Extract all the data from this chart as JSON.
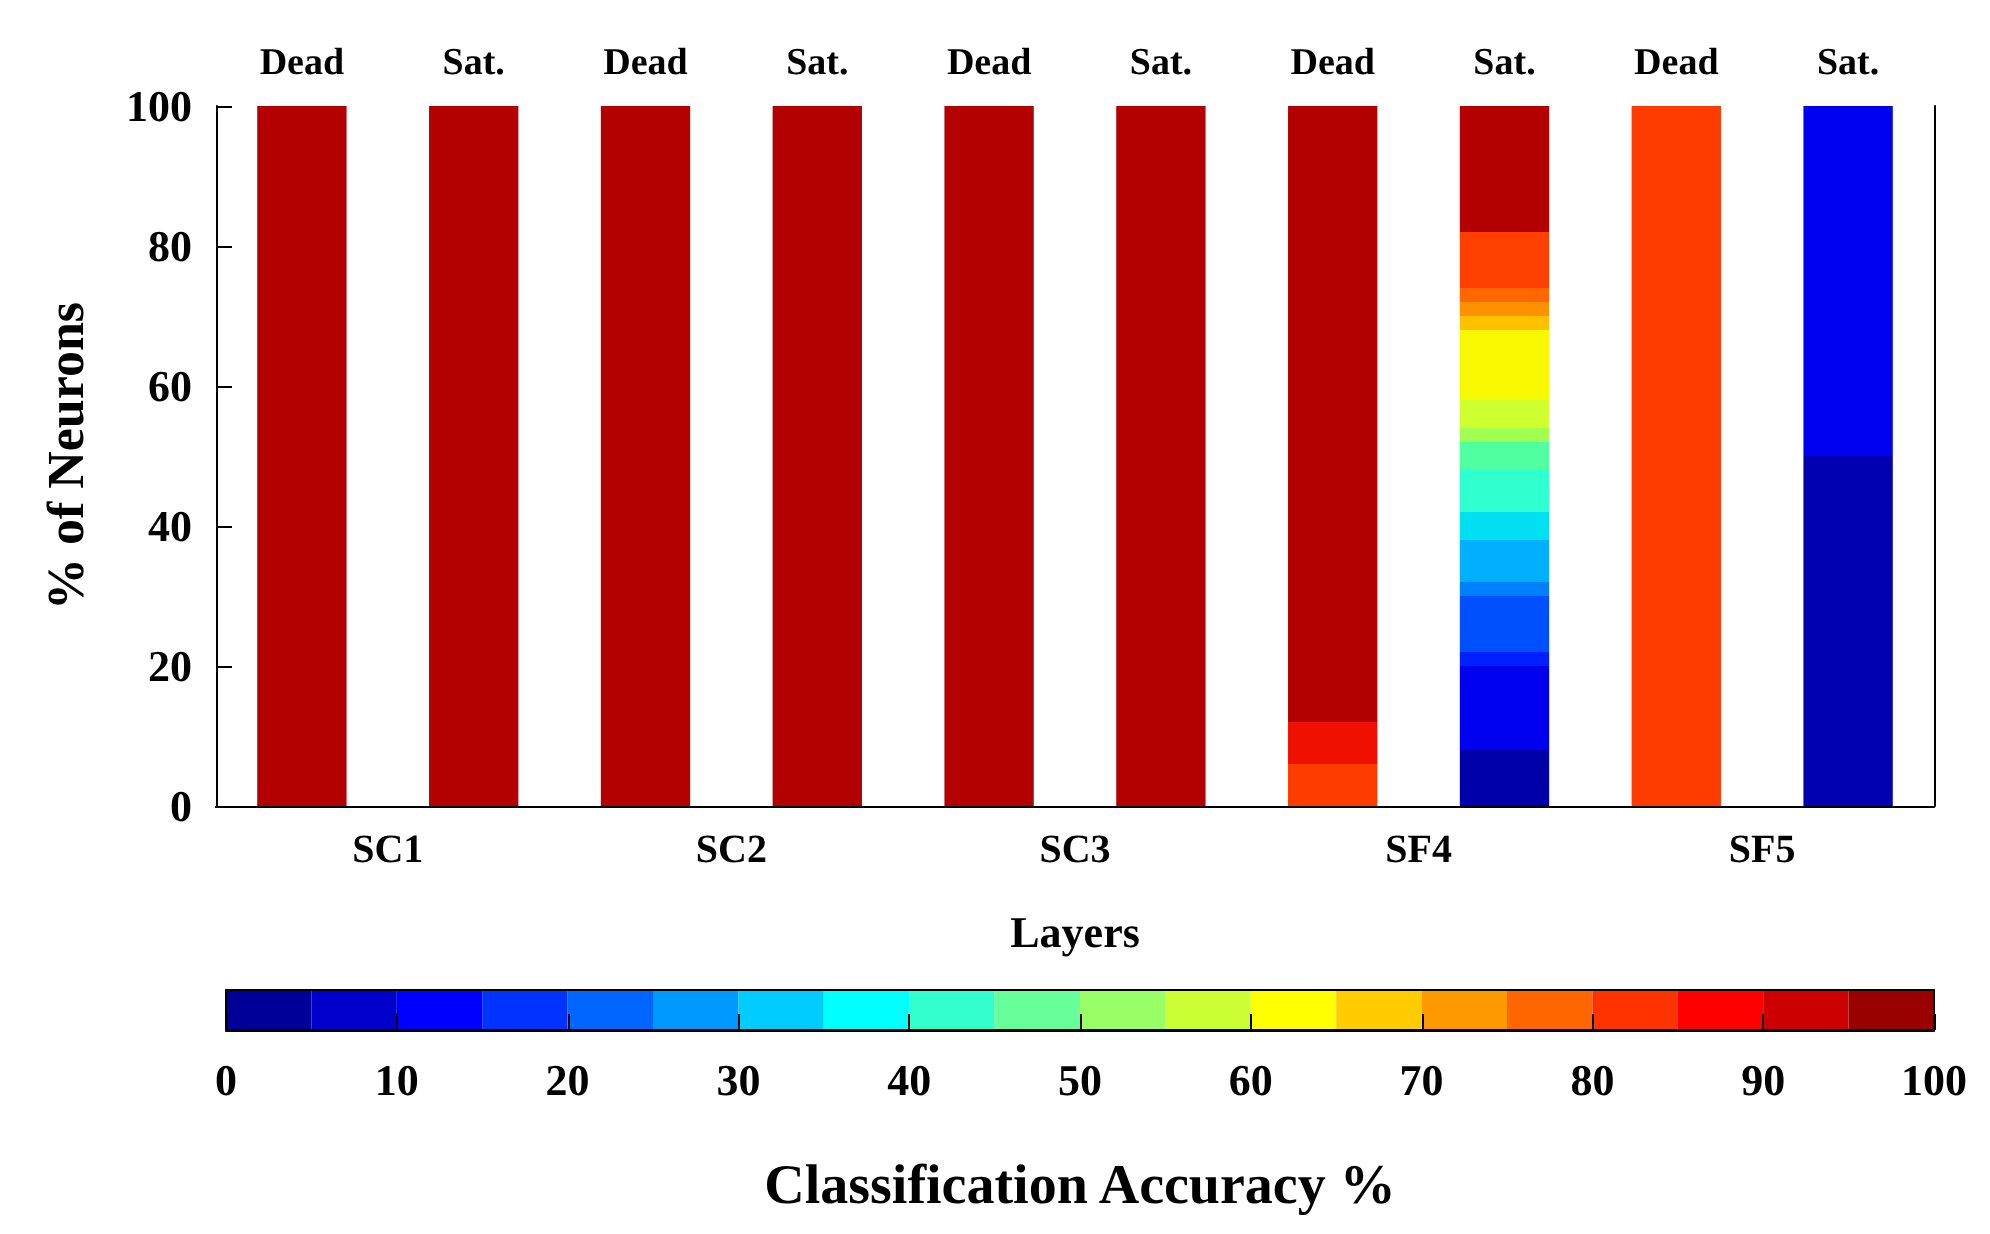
{
  "chart_data": {
    "type": "bar",
    "stacked": true,
    "xlabel": "Layers",
    "ylabel": "% of Neurons",
    "clabel": "Classification Accuracy %",
    "categories": [
      "Dead",
      "Sat.",
      "Dead",
      "Sat.",
      "Dead",
      "Sat.",
      "Dead",
      "Sat.",
      "Dead",
      "Sat."
    ],
    "annotations": [
      "SC1",
      "SC2",
      "SC3",
      "SF4",
      "SF5"
    ],
    "ylim": [
      0,
      100
    ],
    "yticks": [
      0,
      20,
      40,
      60,
      80,
      100
    ],
    "clim": [
      0,
      100
    ],
    "cticks": [
      0,
      10,
      20,
      30,
      40,
      50,
      60,
      70,
      80,
      90,
      100
    ],
    "series": [
      {
        "values": [
          100,
          100,
          100,
          100,
          100,
          100,
          6,
          8,
          100,
          50
        ],
        "colors": [
          "#b30000",
          "#b30000",
          "#b30000",
          "#b30000",
          "#b30000",
          "#b30000",
          "#ff3c00",
          "#0000aa",
          "#ff3c00",
          "#0000b0"
        ]
      },
      {
        "values": [
          null,
          null,
          null,
          null,
          null,
          null,
          6,
          12,
          null,
          50
        ],
        "colors": [
          null,
          null,
          null,
          null,
          null,
          null,
          "#f01000",
          "#0000f0",
          null,
          "#0000f0"
        ]
      },
      {
        "values": [
          null,
          null,
          null,
          null,
          null,
          null,
          88,
          2,
          null,
          null
        ],
        "colors": [
          null,
          null,
          null,
          null,
          null,
          null,
          "#b30000",
          "#0020ff",
          null,
          null
        ]
      },
      {
        "values": [
          null,
          null,
          null,
          null,
          null,
          null,
          null,
          8,
          null,
          null
        ],
        "colors": [
          null,
          null,
          null,
          null,
          null,
          null,
          null,
          "#0050ff",
          null,
          null
        ]
      },
      {
        "values": [
          null,
          null,
          null,
          null,
          null,
          null,
          null,
          2,
          null,
          null
        ],
        "colors": [
          null,
          null,
          null,
          null,
          null,
          null,
          null,
          "#0080ff",
          null,
          null
        ]
      },
      {
        "values": [
          null,
          null,
          null,
          null,
          null,
          null,
          null,
          6,
          null,
          null
        ],
        "colors": [
          null,
          null,
          null,
          null,
          null,
          null,
          null,
          "#00b0ff",
          null,
          null
        ]
      },
      {
        "values": [
          null,
          null,
          null,
          null,
          null,
          null,
          null,
          4,
          null,
          null
        ],
        "colors": [
          null,
          null,
          null,
          null,
          null,
          null,
          null,
          "#00e0f0",
          null,
          null
        ]
      },
      {
        "values": [
          null,
          null,
          null,
          null,
          null,
          null,
          null,
          6,
          null,
          null
        ],
        "colors": [
          null,
          null,
          null,
          null,
          null,
          null,
          null,
          "#30ffd0",
          null,
          null
        ]
      },
      {
        "values": [
          null,
          null,
          null,
          null,
          null,
          null,
          null,
          4,
          null,
          null
        ],
        "colors": [
          null,
          null,
          null,
          null,
          null,
          null,
          null,
          "#50ffa0",
          null,
          null
        ]
      },
      {
        "values": [
          null,
          null,
          null,
          null,
          null,
          null,
          null,
          2,
          null,
          null
        ],
        "colors": [
          null,
          null,
          null,
          null,
          null,
          null,
          null,
          "#a0ff50",
          null,
          null
        ]
      },
      {
        "values": [
          null,
          null,
          null,
          null,
          null,
          null,
          null,
          4,
          null,
          null
        ],
        "colors": [
          null,
          null,
          null,
          null,
          null,
          null,
          null,
          "#d0ff30",
          null,
          null
        ]
      },
      {
        "values": [
          null,
          null,
          null,
          null,
          null,
          null,
          null,
          10,
          null,
          null
        ],
        "colors": [
          null,
          null,
          null,
          null,
          null,
          null,
          null,
          "#f8f800",
          null,
          null
        ]
      },
      {
        "values": [
          null,
          null,
          null,
          null,
          null,
          null,
          null,
          2,
          null,
          null
        ],
        "colors": [
          null,
          null,
          null,
          null,
          null,
          null,
          null,
          "#ffc000",
          null,
          null
        ]
      },
      {
        "values": [
          null,
          null,
          null,
          null,
          null,
          null,
          null,
          2,
          null,
          null
        ],
        "colors": [
          null,
          null,
          null,
          null,
          null,
          null,
          null,
          "#ff9000",
          null,
          null
        ]
      },
      {
        "values": [
          null,
          null,
          null,
          null,
          null,
          null,
          null,
          2,
          null,
          null
        ],
        "colors": [
          null,
          null,
          null,
          null,
          null,
          null,
          null,
          "#ff6800",
          null,
          null
        ]
      },
      {
        "values": [
          null,
          null,
          null,
          null,
          null,
          null,
          null,
          8,
          null,
          null
        ],
        "colors": [
          null,
          null,
          null,
          null,
          null,
          null,
          null,
          "#ff4000",
          null,
          null
        ]
      },
      {
        "values": [
          null,
          null,
          null,
          null,
          null,
          null,
          null,
          18,
          null,
          null
        ],
        "colors": [
          null,
          null,
          null,
          null,
          null,
          null,
          null,
          "#b50000",
          null,
          null
        ]
      }
    ]
  }
}
